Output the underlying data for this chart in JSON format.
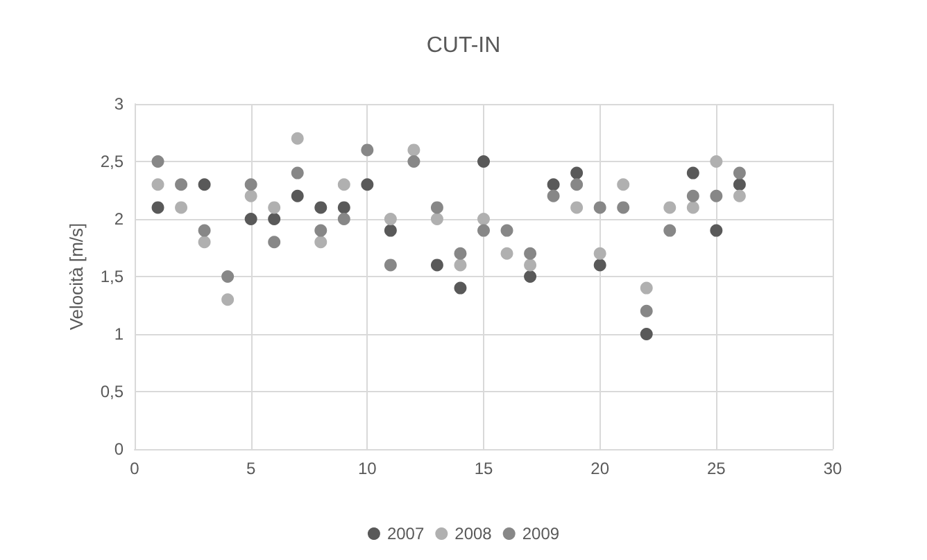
{
  "chart_data": {
    "type": "scatter",
    "title": "CUT-IN",
    "ylabel": "Velocità [m/s]",
    "x": [
      1,
      2,
      3,
      4,
      5,
      6,
      7,
      8,
      9,
      10,
      11,
      12,
      13,
      14,
      15,
      16,
      17,
      18,
      19,
      20,
      21,
      22,
      23,
      24,
      25,
      26
    ],
    "series": [
      {
        "name": "2007",
        "color": "#595959",
        "values": [
          2.1,
          null,
          2.3,
          null,
          2.0,
          2.0,
          2.2,
          2.1,
          2.1,
          2.3,
          1.9,
          null,
          1.6,
          1.4,
          2.5,
          null,
          1.5,
          2.3,
          2.4,
          1.6,
          null,
          1.0,
          null,
          2.4,
          1.9,
          2.3
        ]
      },
      {
        "name": "2008",
        "color": "#b0b0b0",
        "values": [
          2.3,
          2.1,
          1.8,
          1.3,
          2.2,
          2.1,
          2.7,
          1.8,
          2.3,
          null,
          2.0,
          2.6,
          2.0,
          1.6,
          2.0,
          1.7,
          1.6,
          null,
          2.1,
          1.7,
          2.3,
          1.4,
          2.1,
          2.1,
          2.5,
          2.2
        ]
      },
      {
        "name": "2009",
        "color": "#878787",
        "values": [
          2.5,
          2.3,
          1.9,
          1.5,
          2.3,
          1.8,
          2.4,
          1.9,
          2.0,
          2.6,
          1.6,
          2.5,
          2.1,
          1.7,
          1.9,
          1.9,
          1.7,
          2.2,
          2.3,
          2.1,
          2.1,
          1.2,
          1.9,
          2.2,
          2.2,
          2.4
        ]
      }
    ],
    "xlim": [
      0,
      30
    ],
    "xticks": [
      0,
      5,
      10,
      15,
      20,
      25,
      30
    ],
    "ylim": [
      0,
      3
    ],
    "yticks": [
      0,
      {
        "value": 0.5,
        "label": "0,5"
      },
      1,
      {
        "value": 1.5,
        "label": "1,5"
      },
      2,
      {
        "value": 2.5,
        "label": "2,5"
      },
      3
    ],
    "grid": true,
    "legend": "bottom",
    "marker": "circle"
  }
}
